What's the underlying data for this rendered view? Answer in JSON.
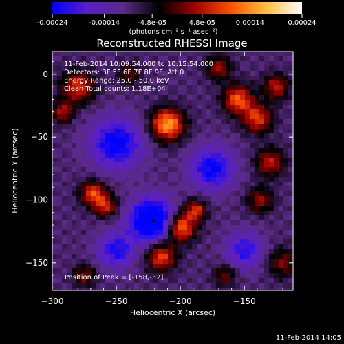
{
  "chart_data": {
    "type": "heatmap",
    "title": "Reconstructed RHESSI Image",
    "colorbar": {
      "ticks": [
        "-0.00024",
        "-0.00014",
        "-4.8e-05",
        "4.8e-05",
        "0.00014",
        "0.00024"
      ],
      "tick_values": [
        -0.00024,
        -0.00014,
        -4.8e-05,
        4.8e-05,
        0.00014,
        0.00024
      ],
      "range": [
        -0.00024,
        0.00024
      ],
      "unit_text": "(photons cm⁻² s⁻¹ asec⁻²)",
      "colors": [
        "#0000ff",
        "#5a1fc8",
        "#5a2a86",
        "#000000",
        "#a00000",
        "#ff5000",
        "#ffc040",
        "#ffffff"
      ]
    },
    "xlabel": "Heliocentric X (arcsec)",
    "ylabel": "Heliocentric Y (arcsec)",
    "xlim": [
      -300,
      -112
    ],
    "ylim": [
      -172,
      18
    ],
    "xticks": [
      -300,
      -250,
      -200,
      -150
    ],
    "xtick_labels": [
      "−300",
      "−250",
      "−200",
      "−150"
    ],
    "yticks": [
      0,
      -50,
      -100,
      -150
    ],
    "ytick_labels": [
      "0",
      "−50",
      "−100",
      "−150"
    ],
    "annotations": [
      "11-Feb-2014 10:09:54.000 to 10:15:54.000",
      "Detectors: 3F 5F 6F 7F 8F 9F, Att 0",
      "Energy Range: 25.0 - 50.0 keV",
      "Clean     Total counts: 1.18E+04"
    ],
    "peak_label": "Position of Peak = [-158,-32]",
    "peak": [
      -158,
      -32
    ],
    "marker": [
      -221,
      -116
    ],
    "sources": [
      {
        "x": -210,
        "y": -40,
        "sigma": 9,
        "amp": 0.00024
      },
      {
        "x": -200,
        "y": -122,
        "sigma": 8,
        "amp": 0.00022
      },
      {
        "x": -188,
        "y": -108,
        "sigma": 6,
        "amp": 0.00016
      },
      {
        "x": -215,
        "y": -145,
        "sigma": 8,
        "amp": 0.00018
      },
      {
        "x": -268,
        "y": -95,
        "sigma": 7,
        "amp": 0.00018
      },
      {
        "x": -258,
        "y": -105,
        "sigma": 6,
        "amp": 0.00014
      },
      {
        "x": -280,
        "y": -10,
        "sigma": 9,
        "amp": 0.00016
      },
      {
        "x": -292,
        "y": -30,
        "sigma": 6,
        "amp": 0.00013
      },
      {
        "x": -155,
        "y": -20,
        "sigma": 8,
        "amp": 0.00019
      },
      {
        "x": -140,
        "y": -35,
        "sigma": 8,
        "amp": 0.00017
      },
      {
        "x": -125,
        "y": -10,
        "sigma": 7,
        "amp": 0.00014
      },
      {
        "x": -170,
        "y": 5,
        "sigma": 7,
        "amp": 0.00012
      },
      {
        "x": -130,
        "y": -70,
        "sigma": 8,
        "amp": 0.00014
      },
      {
        "x": -138,
        "y": -100,
        "sigma": 7,
        "amp": 0.00012
      },
      {
        "x": -120,
        "y": -150,
        "sigma": 8,
        "amp": 0.00011
      },
      {
        "x": -165,
        "y": -160,
        "sigma": 6,
        "amp": 0.0001
      },
      {
        "x": -275,
        "y": -160,
        "sigma": 6,
        "amp": 0.00011
      },
      {
        "x": -240,
        "y": 0,
        "sigma": 6,
        "amp": 0.0001
      },
      {
        "x": -222,
        "y": -116,
        "sigma": 12,
        "amp": -0.00024
      },
      {
        "x": -250,
        "y": -55,
        "sigma": 14,
        "amp": -0.00016
      },
      {
        "x": -250,
        "y": -140,
        "sigma": 10,
        "amp": -0.00013
      },
      {
        "x": -175,
        "y": -75,
        "sigma": 12,
        "amp": -0.00015
      },
      {
        "x": -150,
        "y": -140,
        "sigma": 10,
        "amp": -0.00012
      }
    ],
    "background": -9e-05
  },
  "footer": {
    "timestamp": "11-Feb-2014 14:05"
  }
}
